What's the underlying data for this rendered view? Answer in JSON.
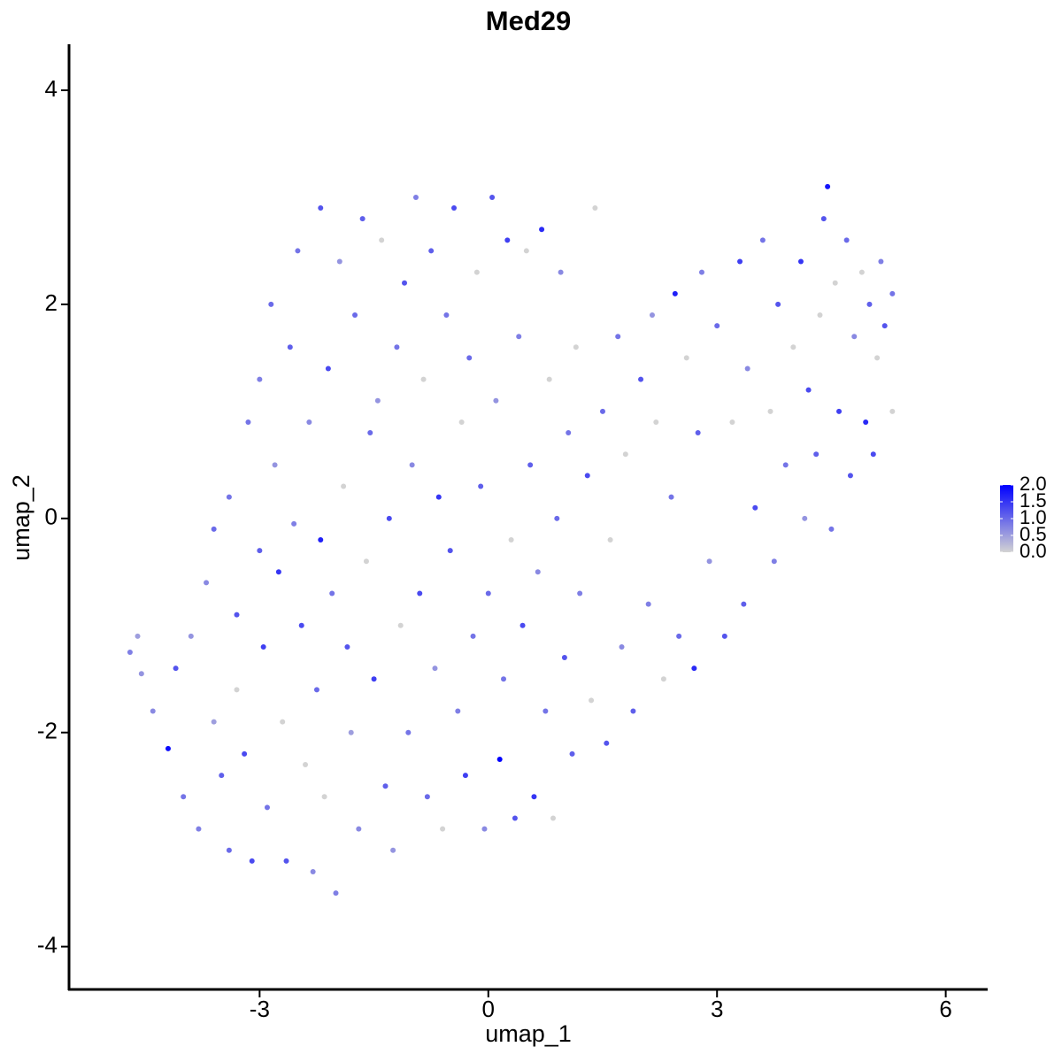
{
  "chart_data": {
    "type": "scatter",
    "title": "Med29",
    "x_label": "umap_1",
    "y_label": "umap_2",
    "x": [
      -4.7,
      -4.6,
      -4.55,
      -4.4,
      -4.2,
      -4.1,
      -4.0,
      -3.9,
      -3.8,
      -3.7,
      -3.6,
      -3.6,
      -3.5,
      -3.4,
      -3.4,
      -3.3,
      -3.3,
      -3.2,
      -3.15,
      -3.1,
      -3.0,
      -3.0,
      -2.95,
      -2.9,
      -2.85,
      -2.8,
      -2.75,
      -2.7,
      -2.65,
      -2.6,
      -2.55,
      -2.5,
      -2.45,
      -2.4,
      -2.35,
      -2.3,
      -2.25,
      -2.2,
      -2.2,
      -2.15,
      -2.1,
      -2.05,
      -2.0,
      -1.95,
      -1.9,
      -1.85,
      -1.8,
      -1.75,
      -1.7,
      -1.65,
      -1.6,
      -1.55,
      -1.5,
      -1.45,
      -1.4,
      -1.35,
      -1.3,
      -1.25,
      -1.2,
      -1.15,
      -1.1,
      -1.05,
      -1.0,
      -0.95,
      -0.9,
      -0.85,
      -0.8,
      -0.75,
      -0.7,
      -0.65,
      -0.6,
      -0.55,
      -0.5,
      -0.45,
      -0.4,
      -0.35,
      -0.3,
      -0.25,
      -0.2,
      -0.15,
      -0.1,
      -0.05,
      0.0,
      0.05,
      0.1,
      0.15,
      0.2,
      0.25,
      0.3,
      0.35,
      0.4,
      0.45,
      0.5,
      0.55,
      0.6,
      0.65,
      0.7,
      0.75,
      0.8,
      0.85,
      0.9,
      0.95,
      1.0,
      1.05,
      1.1,
      1.15,
      1.2,
      1.3,
      1.35,
      1.4,
      1.5,
      1.55,
      1.6,
      1.7,
      1.75,
      1.8,
      1.9,
      2.0,
      2.1,
      2.15,
      2.2,
      2.3,
      2.4,
      2.45,
      2.5,
      2.6,
      2.7,
      2.75,
      2.8,
      2.9,
      3.0,
      3.1,
      3.2,
      3.3,
      3.35,
      3.4,
      3.5,
      3.6,
      3.7,
      3.75,
      3.8,
      3.9,
      4.0,
      4.1,
      4.15,
      4.2,
      4.3,
      4.35,
      4.4,
      4.45,
      4.5,
      4.55,
      4.6,
      4.7,
      4.75,
      4.8,
      4.9,
      4.95,
      5.0,
      5.05,
      5.1,
      5.15,
      5.2,
      5.3,
      5.3
    ],
    "y": [
      -1.25,
      -1.1,
      -1.45,
      -1.8,
      -2.15,
      -1.4,
      -2.6,
      -1.1,
      -2.9,
      -0.6,
      -0.1,
      -1.9,
      -2.4,
      0.2,
      -3.1,
      -0.9,
      -1.6,
      -2.2,
      0.9,
      -3.2,
      -0.3,
      1.3,
      -1.2,
      -2.7,
      2.0,
      0.5,
      -0.5,
      -1.9,
      -3.2,
      1.6,
      -0.05,
      2.5,
      -1.0,
      -2.3,
      0.9,
      -3.3,
      -1.6,
      2.9,
      -0.2,
      -2.6,
      1.4,
      -0.7,
      -3.5,
      2.4,
      0.3,
      -1.2,
      -2.0,
      1.9,
      -2.9,
      2.8,
      -0.4,
      0.8,
      -1.5,
      1.1,
      2.6,
      -2.5,
      0.0,
      -3.1,
      1.6,
      -1.0,
      2.2,
      -2.0,
      0.5,
      3.0,
      -0.7,
      1.3,
      -2.6,
      2.5,
      -1.4,
      0.2,
      -2.9,
      1.9,
      -0.3,
      2.9,
      -1.8,
      0.9,
      -2.4,
      1.5,
      -1.1,
      2.3,
      0.3,
      -2.9,
      -0.7,
      3.0,
      1.1,
      -2.25,
      -1.5,
      2.6,
      -0.2,
      -2.8,
      1.7,
      -1.0,
      2.5,
      0.5,
      -2.6,
      -0.5,
      2.7,
      -1.8,
      1.3,
      -2.8,
      0.0,
      2.3,
      -1.3,
      0.8,
      -2.2,
      1.6,
      -0.7,
      0.4,
      -1.7,
      2.9,
      1.0,
      -2.1,
      -0.2,
      1.7,
      -1.2,
      0.6,
      -1.8,
      1.3,
      -0.8,
      1.9,
      0.9,
      -1.5,
      0.2,
      2.1,
      -1.1,
      1.5,
      -1.4,
      0.8,
      2.3,
      -0.4,
      1.8,
      -1.1,
      0.9,
      2.4,
      -0.8,
      1.4,
      0.1,
      2.6,
      1.0,
      -0.4,
      2.0,
      0.5,
      1.6,
      2.4,
      0.0,
      1.2,
      0.6,
      1.9,
      2.8,
      3.1,
      -0.1,
      2.2,
      1.0,
      2.6,
      0.4,
      1.7,
      2.3,
      0.9,
      2.0,
      0.6,
      1.5,
      2.4,
      1.8,
      2.1,
      1.0
    ],
    "values": [
      0.8,
      0.5,
      0.6,
      0.7,
      1.9,
      1.2,
      0.9,
      0.6,
      0.8,
      0.7,
      1.0,
      0.5,
      1.1,
      0.9,
      1.0,
      1.2,
      0.0,
      1.3,
      0.9,
      1.3,
      1.1,
      0.8,
      1.4,
      0.9,
      1.0,
      0.6,
      1.5,
      0.0,
      1.2,
      1.1,
      0.8,
      0.9,
      1.3,
      0.0,
      0.7,
      0.7,
      1.0,
      1.2,
      1.7,
      0.0,
      1.3,
      0.9,
      0.8,
      0.6,
      0.0,
      1.2,
      0.5,
      1.0,
      0.7,
      1.1,
      0.0,
      1.0,
      1.4,
      0.6,
      0.0,
      1.1,
      1.3,
      0.6,
      0.9,
      0.0,
      1.2,
      0.9,
      0.7,
      0.8,
      1.3,
      0.0,
      1.0,
      1.1,
      0.6,
      1.5,
      0.0,
      0.9,
      1.2,
      1.3,
      0.8,
      0.0,
      1.4,
      1.0,
      0.9,
      0.0,
      1.1,
      0.7,
      1.0,
      1.2,
      0.6,
      2.0,
      0.9,
      1.4,
      0.0,
      1.2,
      0.8,
      1.3,
      0.0,
      1.1,
      1.5,
      0.7,
      1.6,
      0.9,
      0.0,
      0.0,
      1.0,
      0.7,
      1.2,
      0.9,
      1.1,
      0.0,
      0.8,
      1.3,
      0.0,
      0.0,
      1.0,
      1.2,
      0.0,
      0.9,
      0.7,
      0.0,
      1.1,
      1.2,
      0.8,
      0.6,
      0.0,
      0.0,
      0.9,
      1.7,
      1.0,
      0.0,
      1.6,
      1.1,
      0.8,
      0.6,
      1.0,
      1.2,
      0.0,
      1.4,
      1.1,
      0.7,
      1.3,
      0.9,
      0.0,
      0.8,
      1.2,
      0.9,
      0.0,
      1.5,
      0.6,
      1.3,
      1.1,
      0.0,
      1.2,
      1.8,
      0.9,
      0.0,
      1.4,
      1.0,
      1.2,
      0.7,
      0.0,
      1.6,
      1.1,
      1.3,
      0.0,
      0.8,
      1.2,
      0.9,
      0.0
    ],
    "xlim": [
      -5.5,
      6.55
    ],
    "ylim": [
      -4.4,
      4.43
    ],
    "xticks": [
      -3,
      0,
      3,
      6
    ],
    "yticks": [
      -4,
      -2,
      0,
      2,
      4
    ],
    "colorbar": {
      "lim": [
        0,
        2
      ],
      "colors": [
        "#d3d3d3",
        "#0000ff"
      ],
      "ticks": [
        {
          "value": 0,
          "label": "0.0"
        },
        0.5,
        {
          "value": 1,
          "label": "1.0"
        },
        1.5,
        {
          "value": 2,
          "label": "2.0"
        }
      ]
    }
  }
}
